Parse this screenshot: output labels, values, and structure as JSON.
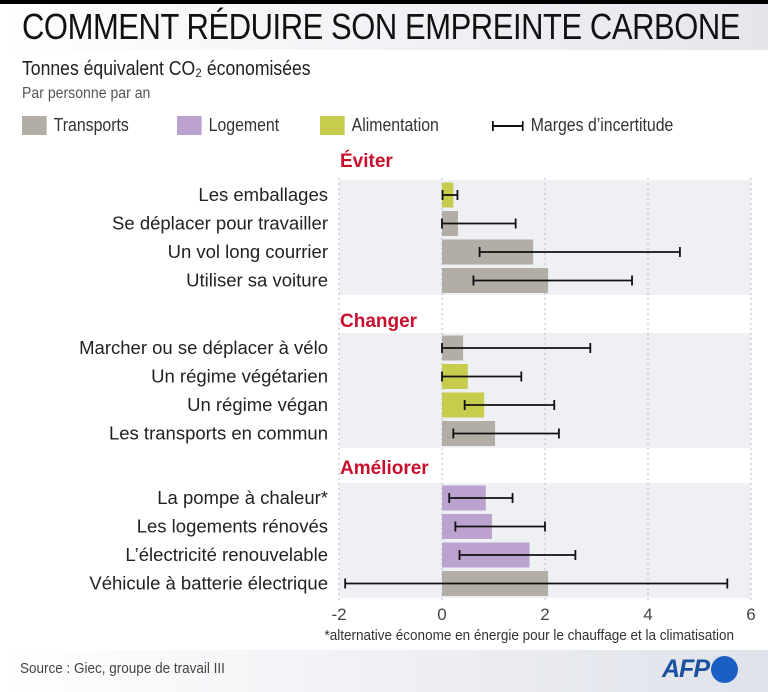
{
  "title": "COMMENT RÉDUIRE SON EMPREINTE CARBONE",
  "subtitle": "Tonnes équivalent CO₂ économisées",
  "subtitle2": "Par personne par an",
  "legend": [
    {
      "label": "Transports",
      "color": "#b2aea6"
    },
    {
      "label": "Logement",
      "color": "#bba2cf"
    },
    {
      "label": "Alimentation",
      "color": "#c8cc4c"
    },
    {
      "label": "Marges d’incertitude",
      "color": "#111111"
    }
  ],
  "footnote": "*alternative économe en énergie pour le chauffage et la climatisation",
  "source": "Source : Giec, groupe de travail III",
  "logo": "AFP",
  "chart_data": {
    "type": "bar",
    "orientation": "horizontal",
    "title": "Comment réduire son empreinte carbone",
    "xlabel": "Tonnes équivalent CO₂ économisées par personne par an",
    "xlim": [
      -2,
      6
    ],
    "xticks": [
      "-2",
      "0",
      "2",
      "4",
      "6"
    ],
    "xtick_values": [
      -2,
      0,
      2,
      4,
      6
    ],
    "grid": true,
    "legend_position": "top-left",
    "category_colors": {
      "transports": "#b2aea6",
      "logement": "#bba2cf",
      "alimentation": "#c8cc4c"
    },
    "groups": [
      {
        "name": "Éviter",
        "rows": [
          {
            "label": "Les emballages",
            "category": "alimentation",
            "value": 0.22,
            "err_low": 0.01,
            "err_high": 0.3
          },
          {
            "label": "Se déplacer pour travailler",
            "category": "transports",
            "value": 0.31,
            "err_low": 0.0,
            "err_high": 1.43
          },
          {
            "label": "Un vol long courrier",
            "category": "transports",
            "value": 1.77,
            "err_low": 0.73,
            "err_high": 4.62
          },
          {
            "label": "Utiliser sa voiture",
            "category": "transports",
            "value": 2.06,
            "err_low": 0.61,
            "err_high": 3.69
          }
        ]
      },
      {
        "name": "Changer",
        "rows": [
          {
            "label": "Marcher ou se déplacer à vélo",
            "category": "transports",
            "value": 0.41,
            "err_low": 0.0,
            "err_high": 2.88
          },
          {
            "label": "Un régime végétarien",
            "category": "alimentation",
            "value": 0.5,
            "err_low": 0.0,
            "err_high": 1.54
          },
          {
            "label": "Un régime végan",
            "category": "alimentation",
            "value": 0.82,
            "err_low": 0.44,
            "err_high": 2.18
          },
          {
            "label": "Les transports en commun",
            "category": "transports",
            "value": 1.03,
            "err_low": 0.22,
            "err_high": 2.27
          }
        ]
      },
      {
        "name": "Améliorer",
        "rows": [
          {
            "label": "La pompe à chaleur*",
            "category": "logement",
            "value": 0.85,
            "err_low": 0.14,
            "err_high": 1.37
          },
          {
            "label": "Les logements rénovés",
            "category": "logement",
            "value": 0.97,
            "err_low": 0.26,
            "err_high": 2.0
          },
          {
            "label": "L’électricité renouvelable",
            "category": "logement",
            "value": 1.7,
            "err_low": 0.34,
            "err_high": 2.59
          },
          {
            "label": "Véhicule à batterie électrique",
            "category": "transports",
            "value": 2.06,
            "err_low": -1.88,
            "err_high": 5.54
          }
        ]
      }
    ]
  }
}
